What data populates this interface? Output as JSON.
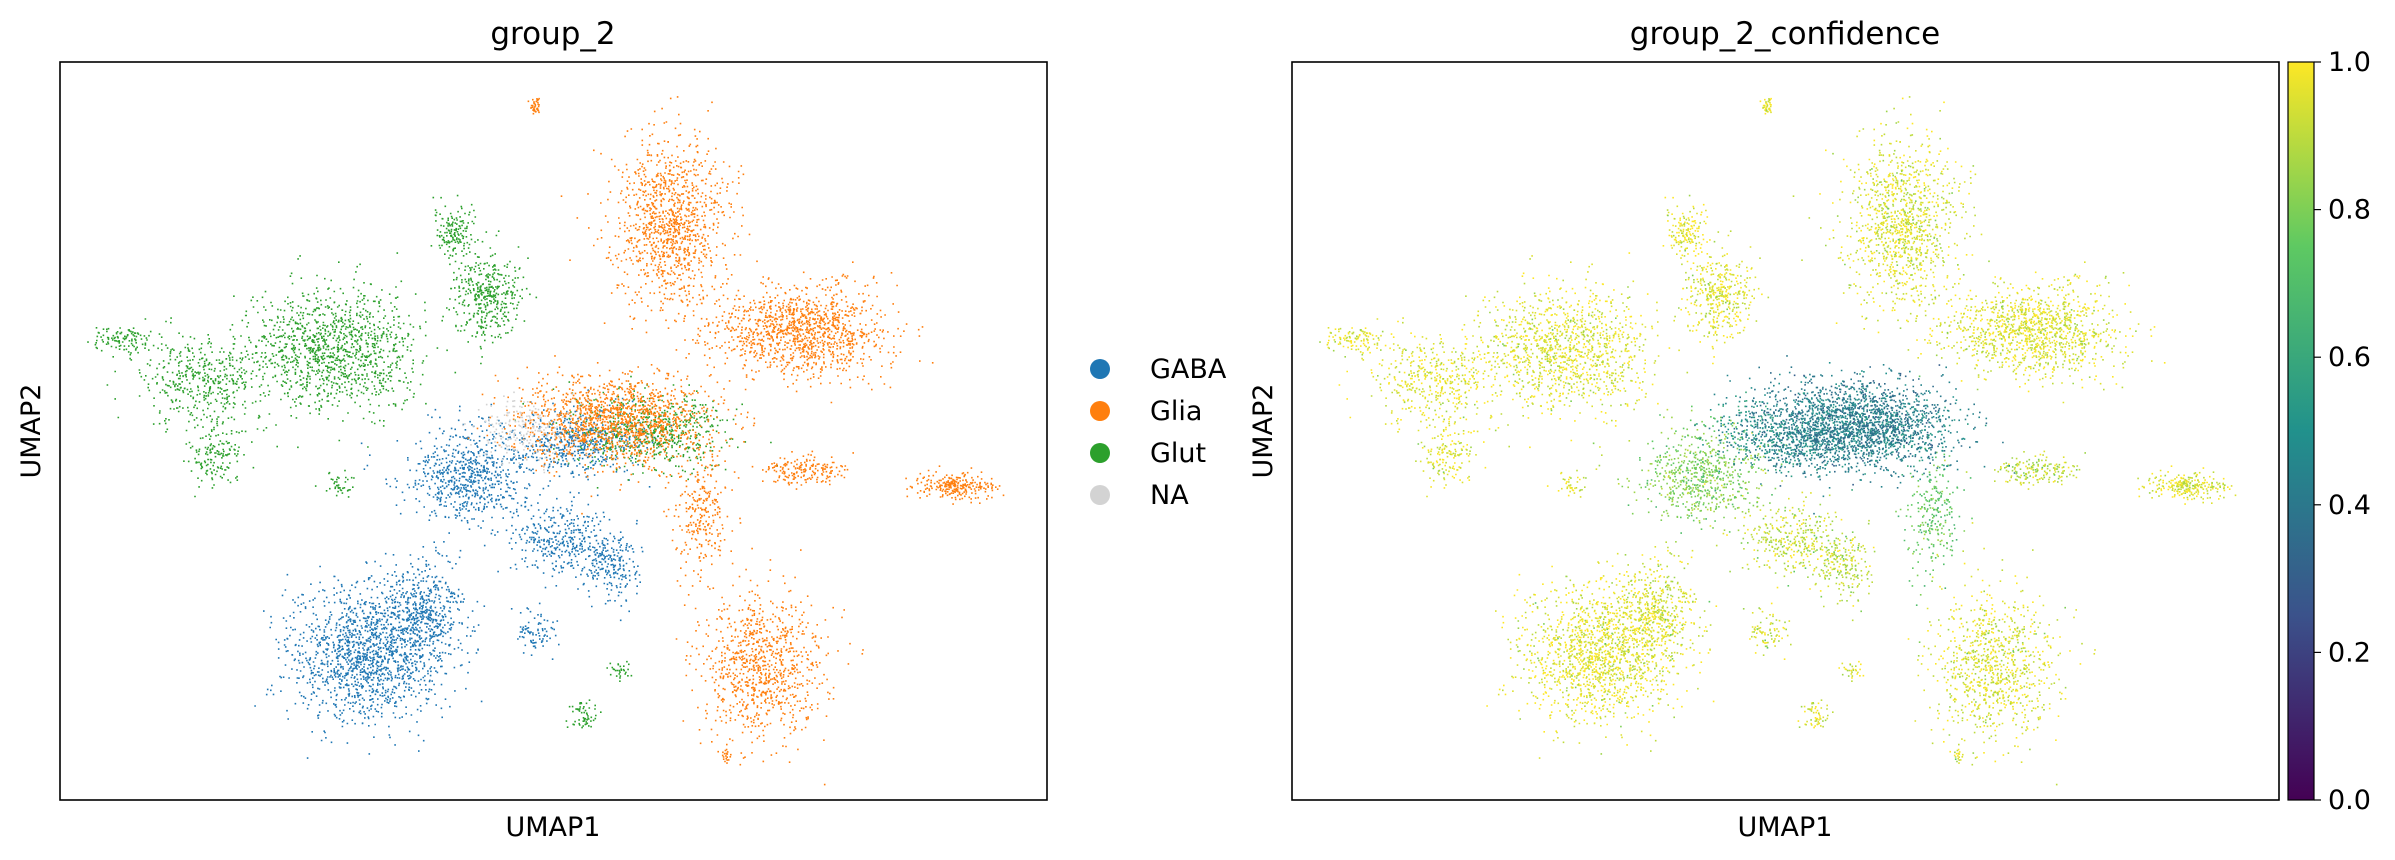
{
  "chart_data": [
    {
      "type": "scatter",
      "title": "group_2",
      "xlabel": "UMAP1",
      "ylabel": "UMAP2",
      "grid": false,
      "ticks": "none",
      "legend": {
        "placement": "right-outside",
        "entries": [
          {
            "label": "GABA",
            "color": "#1f77b4"
          },
          {
            "label": "Glia",
            "color": "#ff7f0e"
          },
          {
            "label": "Glut",
            "color": "#2ca02c"
          },
          {
            "label": "NA",
            "color": "#d3d3d3"
          }
        ]
      }
    },
    {
      "type": "scatter",
      "title": "group_2_confidence",
      "xlabel": "UMAP1",
      "ylabel": "UMAP2",
      "grid": false,
      "ticks": "none",
      "colorbar": {
        "colormap": "viridis",
        "range": [
          0.0,
          1.0
        ],
        "ticks": [
          0.0,
          0.2,
          0.4,
          0.6,
          0.8,
          1.0
        ],
        "tick_labels": [
          "0.0",
          "0.2",
          "0.4",
          "0.6",
          "0.8",
          "1.0"
        ],
        "colors": [
          "#440154",
          "#3b528b",
          "#21918c",
          "#5ec962",
          "#fde725"
        ]
      }
    }
  ]
}
